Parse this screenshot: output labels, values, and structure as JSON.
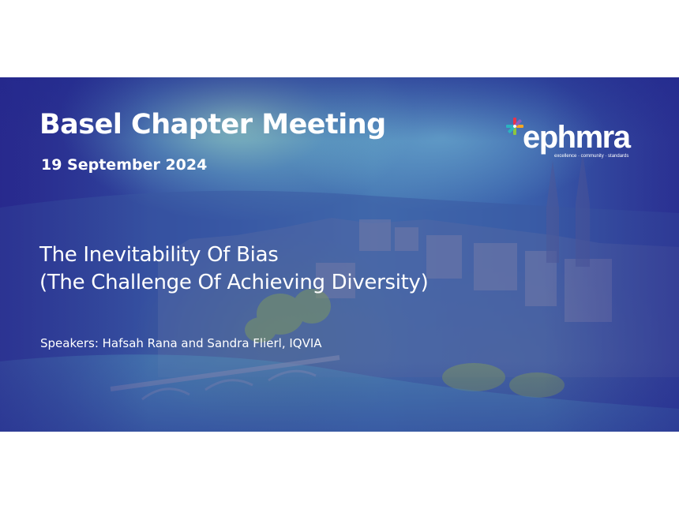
{
  "slide": {
    "title": "Basel Chapter Meeting",
    "date": "19 September 2024",
    "subtitle_line1": "The Inevitability Of Bias",
    "subtitle_line2": "(The Challenge Of Achieving Diversity)",
    "speakers": "Speakers: Hafsah Rana and Sandra Flierl, IQVIA"
  },
  "logo": {
    "wordmark": "ephmra",
    "tagline": "excellence · community · standards",
    "icon": "ephmra-star-icon",
    "colors": {
      "red": "#e8334a",
      "green": "#8cc63f",
      "teal": "#2bb3c0",
      "purple": "#8b5fbf",
      "orange": "#f5a623"
    }
  },
  "background": {
    "description_colors": {
      "deep_blue": "#2a2f8f",
      "mid_blue": "#4778b4"
    }
  }
}
